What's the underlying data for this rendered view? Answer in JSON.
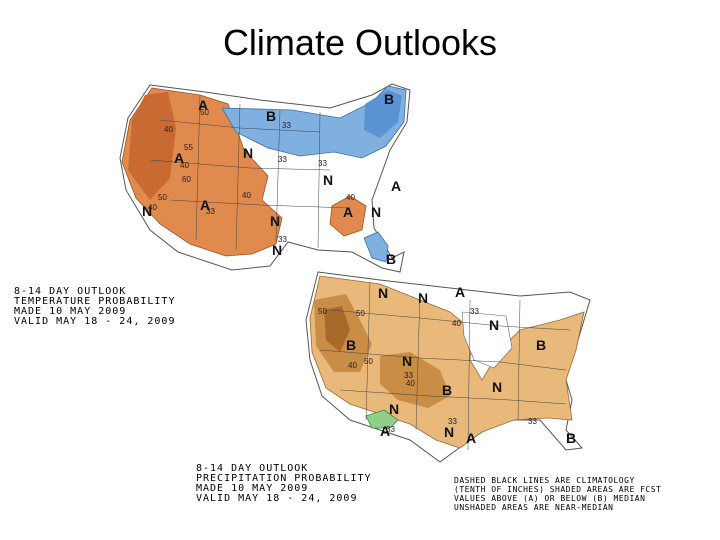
{
  "slide_title": "Climate Outlooks",
  "temperature_map": {
    "caption": [
      "8-14 DAY OUTLOOK",
      "TEMPERATURE PROBABILITY",
      "MADE   10 MAY 2009",
      "VALID   MAY 18 - 24, 2009"
    ],
    "colors": {
      "above": "#e08a4e",
      "above_dark": "#c96a32",
      "below": "#7fb0e0",
      "below_dark": "#5a93d2",
      "land_outline": "#555555"
    },
    "letters": [
      "A",
      "B",
      "B",
      "N",
      "A",
      "A",
      "N",
      "N",
      "N",
      "A",
      "A",
      "N",
      "N",
      "B"
    ],
    "contour_labels": [
      "40",
      "50",
      "33",
      "55",
      "40",
      "33",
      "33",
      "60",
      "40",
      "50",
      "40",
      "33",
      "40",
      "33"
    ]
  },
  "precipitation_map": {
    "caption": [
      "8-14 DAY OUTLOOK",
      "PRECIPITATION PROBABILITY",
      "MADE   10 MAY 2009",
      "VALID   MAY 18 - 24, 2009"
    ],
    "legend_note": [
      "DASHED BLACK LINES ARE CLIMATOLOGY",
      "(TENTH OF INCHES) SHADED AREAS ARE FCST",
      "VALUES ABOVE (A) OR BELOW (B) MEDIAN",
      "UNSHADED AREAS ARE NEAR-MEDIAN"
    ],
    "colors": {
      "below": "#e8b97a",
      "below_dark": "#c98d45",
      "below_darker": "#a8692c",
      "above": "#8fcf8a",
      "land_outline": "#555555"
    },
    "letters": [
      "N",
      "N",
      "A",
      "N",
      "B",
      "N",
      "B",
      "N",
      "B",
      "N",
      "A",
      "N",
      "A",
      "B"
    ],
    "contour_labels": [
      "50",
      "40",
      "50",
      "33",
      "50",
      "33",
      "40",
      "33",
      "40",
      "33",
      "33"
    ]
  }
}
